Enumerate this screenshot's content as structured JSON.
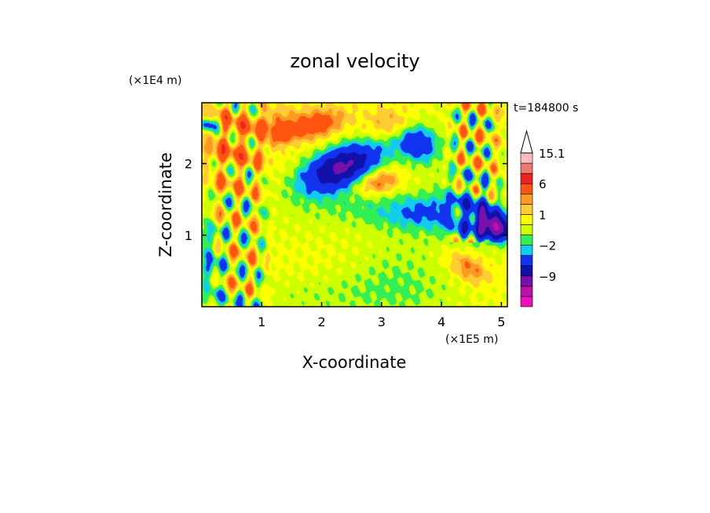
{
  "chart_data": {
    "type": "heatmap",
    "title": "zonal velocity",
    "xlabel": "X-coordinate",
    "ylabel": "Z-coordinate",
    "x_unit": "(×1E5 m)",
    "y_unit": "(×1E4 m)",
    "time_label": "t=184800 s",
    "xlim": [
      0,
      5.1
    ],
    "ylim": [
      0,
      2.85
    ],
    "x_ticks": [
      "1",
      "2",
      "3",
      "4",
      "5"
    ],
    "x_tick_values": [
      1,
      2,
      3,
      4,
      5
    ],
    "y_ticks": [
      "1",
      "2"
    ],
    "y_tick_values": [
      1,
      2
    ],
    "colorbar": {
      "levels": [
        -15,
        -12,
        -9,
        -6,
        -3,
        -2,
        -1,
        0,
        1,
        2,
        3,
        6,
        9,
        12,
        15.1
      ],
      "tick_labels": [
        "15.1",
        "6",
        "1",
        "−2",
        "−9"
      ],
      "tick_values": [
        15.1,
        6,
        1,
        -2,
        -9
      ],
      "colors": [
        "#ee11bb",
        "#bb11aa",
        "#7711aa",
        "#1111aa",
        "#1133ee",
        "#11ccee",
        "#33ee55",
        "#ccff00",
        "#ffff00",
        "#ffcc33",
        "#ff9922",
        "#ff5511",
        "#ee2222",
        "#ee7777",
        "#ffbbbb"
      ],
      "extend_max": true
    },
    "background_level": 0.4,
    "features": [
      {
        "x": 2.3,
        "z": 1.95,
        "sx": 0.42,
        "sz": 0.17,
        "rot": 18,
        "v": -9
      },
      {
        "x": 2.6,
        "z": 1.85,
        "sx": 1.1,
        "sz": 0.42,
        "rot": 20,
        "v": -1.5
      },
      {
        "x": 2.95,
        "z": 1.75,
        "sx": 0.28,
        "sz": 0.13,
        "rot": 10,
        "v": 4
      },
      {
        "x": 1.9,
        "z": 2.55,
        "sx": 0.35,
        "sz": 0.14,
        "rot": 10,
        "v": 4
      },
      {
        "x": 1.2,
        "z": 2.55,
        "sx": 0.3,
        "sz": 0.18,
        "rot": 0,
        "v": 2
      },
      {
        "x": 3.15,
        "z": 2.5,
        "sx": 0.3,
        "sz": 0.2,
        "rot": 0,
        "v": 2.5
      },
      {
        "x": 3.2,
        "z": 2.3,
        "sx": 0.22,
        "sz": 0.12,
        "rot": 0,
        "v": -1.5
      },
      {
        "x": 3.6,
        "z": 2.3,
        "sx": 0.22,
        "sz": 0.16,
        "rot": -20,
        "v": -5
      },
      {
        "x": 3.2,
        "z": 1.3,
        "sx": 0.7,
        "sz": 0.18,
        "rot": -8,
        "v": -1.5
      },
      {
        "x": 3.65,
        "z": 1.35,
        "sx": 0.35,
        "sz": 0.15,
        "rot": 0,
        "v": -2.2
      },
      {
        "x": 4.25,
        "z": 1.3,
        "sx": 0.4,
        "sz": 0.25,
        "rot": 0,
        "v": -1.2
      },
      {
        "x": 3.3,
        "z": 0.5,
        "sx": 0.65,
        "sz": 0.4,
        "rot": 0,
        "v": -1.2
      },
      {
        "x": 2.2,
        "z": 0.15,
        "sx": 1.6,
        "sz": 0.22,
        "rot": 0,
        "v": -1.0
      },
      {
        "x": 4.85,
        "z": 1.15,
        "sx": 0.22,
        "sz": 0.11,
        "rot": -20,
        "v": -12
      },
      {
        "x": 4.6,
        "z": 1.3,
        "sx": 0.42,
        "sz": 0.3,
        "rot": -20,
        "v": -2.5
      },
      {
        "x": 4.45,
        "z": 0.55,
        "sx": 0.25,
        "sz": 0.13,
        "rot": -25,
        "v": 3
      },
      {
        "x": 0.45,
        "z": 2.3,
        "sx": 0.45,
        "sz": 0.35,
        "rot": -40,
        "v": 2.2
      },
      {
        "x": 0.12,
        "z": 0.65,
        "sx": 0.12,
        "sz": 0.4,
        "rot": 0,
        "v": -3
      },
      {
        "x": 0.1,
        "z": 2.55,
        "sx": 0.16,
        "sz": 0.07,
        "rot": 0,
        "v": -5
      },
      {
        "x": 1.35,
        "z": 2.4,
        "sx": 0.14,
        "sz": 0.07,
        "rot": 20,
        "v": 2.5
      }
    ],
    "waves": [
      {
        "xmin": 0.0,
        "xmax": 1.2,
        "zmin": 0.0,
        "zmax": 2.85,
        "amp": 4.5,
        "kx": 12,
        "kz": 6
      },
      {
        "xmin": 4.0,
        "xmax": 5.1,
        "zmin": 0.9,
        "zmax": 2.85,
        "amp": 5,
        "kx": 13,
        "kz": 7
      }
    ]
  }
}
